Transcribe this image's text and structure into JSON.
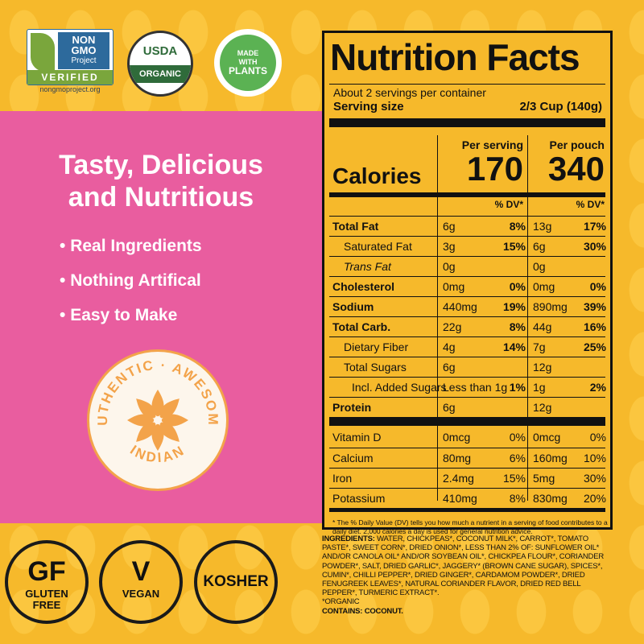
{
  "badges": {
    "nongmo": {
      "line1": "NON",
      "line2": "GMO",
      "line3": "Project",
      "verified": "VERIFIED",
      "url": "nongmoproject.org"
    },
    "usda": {
      "top": "USDA",
      "band": "ORGANIC"
    },
    "plants": {
      "top": "MADE",
      "mid": "WITH",
      "bottom": "PLANTS"
    }
  },
  "headline": {
    "line1": "Tasty, Delicious",
    "line2": "and Nutritious"
  },
  "bullets": [
    "Real Ingredients",
    "Nothing Artifical",
    "Easy to Make"
  ],
  "seal": {
    "top": "AUTHENTIC · AWESOME",
    "bottom": "INDIAN"
  },
  "diet_badges": {
    "gf": {
      "big": "GF",
      "small1": "GLUTEN",
      "small2": "FREE"
    },
    "vegan": {
      "big": "V",
      "small": "VEGAN"
    },
    "kosher": {
      "label": "KOSHER"
    }
  },
  "nutrition": {
    "title": "Nutrition Facts",
    "servings": "About 2 servings per container",
    "serving_size_label": "Serving size",
    "serving_size_value": "2/3 Cup (140g)",
    "col1_header": "Per serving",
    "col2_header": "Per pouch",
    "calories_label": "Calories",
    "calories_serving": "170",
    "calories_pouch": "340",
    "dv_header": "% DV*",
    "rows": [
      {
        "name": "Total Fat",
        "bold": true,
        "indent": 0,
        "a1": "6g",
        "p1": "8%",
        "a2": "13g",
        "p2": "17%"
      },
      {
        "name": "Saturated Fat",
        "bold": false,
        "indent": 1,
        "a1": "3g",
        "p1": "15%",
        "a2": "6g",
        "p2": "30%"
      },
      {
        "name": "Trans Fat",
        "bold": false,
        "indent": 1,
        "italic": true,
        "a1": "0g",
        "p1": "",
        "a2": "0g",
        "p2": ""
      },
      {
        "name": "Cholesterol",
        "bold": true,
        "indent": 0,
        "a1": "0mg",
        "p1": "0%",
        "a2": "0mg",
        "p2": "0%"
      },
      {
        "name": "Sodium",
        "bold": true,
        "indent": 0,
        "a1": "440mg",
        "p1": "19%",
        "a2": "890mg",
        "p2": "39%"
      },
      {
        "name": "Total Carb.",
        "bold": true,
        "indent": 0,
        "a1": "22g",
        "p1": "8%",
        "a2": "44g",
        "p2": "16%"
      },
      {
        "name": "Dietary Fiber",
        "bold": false,
        "indent": 1,
        "a1": "4g",
        "p1": "14%",
        "a2": "7g",
        "p2": "25%"
      },
      {
        "name": "Total Sugars",
        "bold": false,
        "indent": 1,
        "a1": "6g",
        "p1": "",
        "a2": "12g",
        "p2": ""
      },
      {
        "name": "Incl. Added Sugars",
        "bold": false,
        "indent": 2,
        "a1": "Less than 1g",
        "p1": "1%",
        "a2": "1g",
        "p2": "2%"
      },
      {
        "name": "Protein",
        "bold": true,
        "indent": 0,
        "a1": "6g",
        "p1": "",
        "a2": "12g",
        "p2": ""
      }
    ],
    "vitamins": [
      {
        "name": "Vitamin D",
        "a1": "0mcg",
        "p1": "0%",
        "a2": "0mcg",
        "p2": "0%"
      },
      {
        "name": "Calcium",
        "a1": "80mg",
        "p1": "6%",
        "a2": "160mg",
        "p2": "10%"
      },
      {
        "name": "Iron",
        "a1": "2.4mg",
        "p1": "15%",
        "a2": "5mg",
        "p2": "30%"
      },
      {
        "name": "Potassium",
        "a1": "410mg",
        "p1": "8%",
        "a2": "830mg",
        "p2": "20%"
      }
    ],
    "footnote": "* The % Daily Value (DV) tells you how much a nutrient in a serving of food contributes to a daily diet. 2,000 calories a day is used for general nutrition advice."
  },
  "ingredients": {
    "label": "INGREDIENTS:",
    "text": "WATER, CHICKPEAS*, COCONUT MILK*, CARROT*, TOMATO PASTE*, SWEET CORN*, DRIED ONION*, LESS THAN 2% OF: SUNFLOWER OIL* AND/OR CANOLA OIL* AND/OR SOYBEAN OIL*, CHICKPEA FLOUR*, CORIANDER POWDER*, SALT, DRIED GARLIC*, JAGGERY* (BROWN CANE SUGAR), SPICES*, CUMIN*, CHILLI PEPPER*, DRIED GINGER*, CARDAMOM POWDER*, DRIED FENUGREEK LEAVES*, NATURAL CORIANDER FLAVOR, DRIED RED BELL PEPPER*, TURMERIC EXTRACT*.",
    "organic": "*ORGANIC",
    "contains": "CONTAINS: COCONUT."
  },
  "colors": {
    "pink": "#e95d9f",
    "yellow": "#f6b92b",
    "seal_orange": "#f3a34a"
  }
}
